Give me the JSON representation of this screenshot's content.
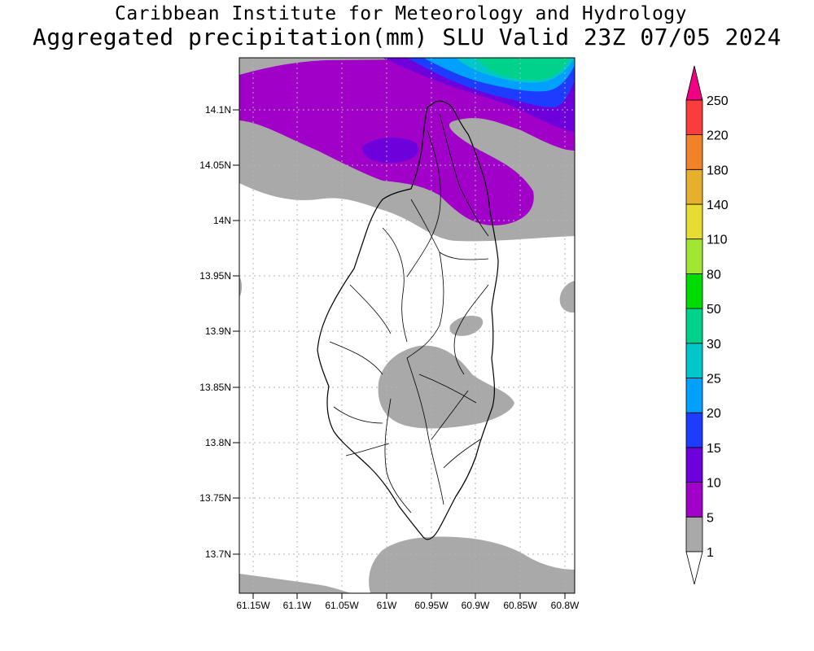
{
  "header": {
    "title": "Caribbean Institute for Meteorology and Hydrology",
    "subtitle": "Aggregated precipitation(mm) SLU Valid 23Z 07/05 2024"
  },
  "map": {
    "region": "Saint Lucia",
    "lat_labels": [
      "14.1N",
      "14.05N",
      "14N",
      "13.95N",
      "13.9N",
      "13.85N",
      "13.8N",
      "13.75N",
      "13.7N"
    ],
    "lon_labels": [
      "61.15W",
      "61.1W",
      "61.05W",
      "61W",
      "60.95W",
      "60.9W",
      "60.85W",
      "60.8W"
    ]
  },
  "legend": {
    "levels": [
      "1",
      "5",
      "10",
      "15",
      "20",
      "25",
      "30",
      "50",
      "80",
      "110",
      "140",
      "180",
      "220",
      "250"
    ],
    "colors": [
      "#ffffff",
      "#a9a9a9",
      "#a000c8",
      "#6e00dc",
      "#1e3cff",
      "#00a0ff",
      "#00c8c8",
      "#00d28c",
      "#00dc00",
      "#a0e632",
      "#e6dc32",
      "#e6af2d",
      "#f08228",
      "#fa3c3c",
      "#f00082"
    ]
  }
}
